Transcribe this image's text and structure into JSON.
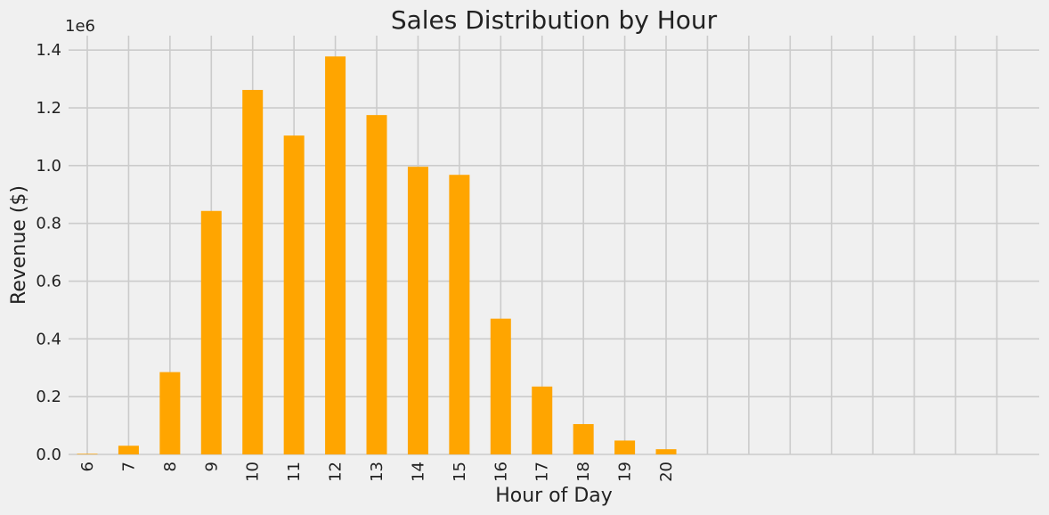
{
  "chart_data": {
    "type": "bar",
    "title": "Sales Distribution by Hour",
    "xlabel": "Hour of Day",
    "ylabel": "Revenue ($)",
    "y_offset_label": "1e6",
    "categories": [
      "6",
      "7",
      "8",
      "9",
      "10",
      "11",
      "12",
      "13",
      "14",
      "15",
      "16",
      "17",
      "18",
      "19",
      "20"
    ],
    "values": [
      2000,
      30000,
      285000,
      843000,
      1262000,
      1104000,
      1378000,
      1175000,
      996000,
      968000,
      470000,
      235000,
      105000,
      48000,
      18000
    ],
    "ylim": [
      0,
      1450000
    ],
    "y_ticks": [
      0,
      200000,
      400000,
      600000,
      800000,
      1000000,
      1200000,
      1400000
    ],
    "y_tick_labels": [
      "0.0",
      "0.2",
      "0.4",
      "0.6",
      "0.8",
      "1.0",
      "1.2",
      "1.4"
    ],
    "grid": true,
    "bar_color": "#ffa500",
    "background": "#f0f0f0",
    "grid_color": "#cbcbcb"
  }
}
